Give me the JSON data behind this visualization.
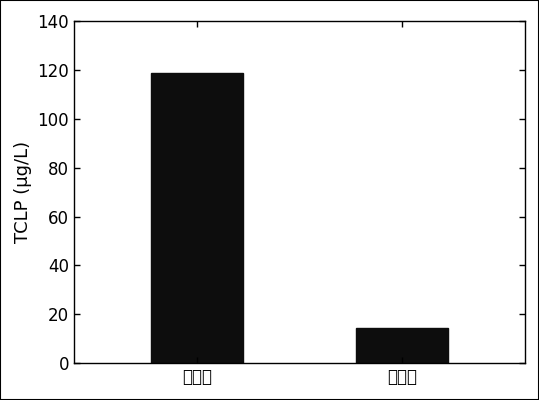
{
  "categories": [
    "修复前",
    "修复后"
  ],
  "values": [
    118.5,
    14.5
  ],
  "bar_color": "#0d0d0d",
  "ylabel": "TCLP (μg/L)",
  "ylim": [
    0,
    140
  ],
  "yticks": [
    0,
    20,
    40,
    60,
    80,
    100,
    120,
    140
  ],
  "bar_width": 0.45,
  "background_color": "#ffffff",
  "tick_fontsize": 12,
  "label_fontsize": 13,
  "xlim": [
    -0.6,
    1.6
  ]
}
